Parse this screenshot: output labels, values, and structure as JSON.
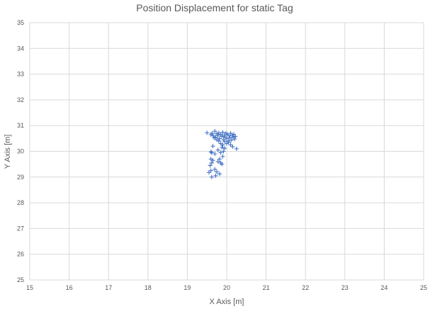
{
  "chart_data": {
    "type": "scatter",
    "title": "Position Displacement for static Tag",
    "xlabel": "X Axis [m]",
    "ylabel": "Y Axis [m]",
    "xlim": [
      15,
      25
    ],
    "ylim": [
      25,
      35
    ],
    "xticks": [
      15,
      16,
      17,
      18,
      19,
      20,
      21,
      22,
      23,
      24,
      25
    ],
    "yticks": [
      25,
      26,
      27,
      28,
      29,
      30,
      31,
      32,
      33,
      34,
      35
    ],
    "grid": true,
    "marker": "plus",
    "series": [
      {
        "color": "#4472c4",
        "points": [
          [
            19.5,
            30.72
          ],
          [
            19.6,
            30.65
          ],
          [
            19.63,
            30.7
          ],
          [
            19.66,
            30.6
          ],
          [
            19.7,
            30.78
          ],
          [
            19.72,
            30.55
          ],
          [
            19.75,
            30.68
          ],
          [
            19.78,
            30.62
          ],
          [
            19.8,
            30.72
          ],
          [
            19.82,
            30.5
          ],
          [
            19.85,
            30.66
          ],
          [
            19.88,
            30.58
          ],
          [
            19.9,
            30.74
          ],
          [
            19.92,
            30.45
          ],
          [
            19.94,
            30.62
          ],
          [
            19.96,
            30.55
          ],
          [
            19.98,
            30.7
          ],
          [
            20.0,
            30.5
          ],
          [
            20.02,
            30.66
          ],
          [
            20.04,
            30.4
          ],
          [
            20.06,
            30.6
          ],
          [
            20.08,
            30.52
          ],
          [
            20.1,
            30.7
          ],
          [
            20.12,
            30.44
          ],
          [
            20.14,
            30.62
          ],
          [
            20.16,
            30.55
          ],
          [
            20.18,
            30.66
          ],
          [
            20.2,
            30.48
          ],
          [
            20.22,
            30.58
          ],
          [
            20.05,
            30.35
          ],
          [
            19.95,
            30.38
          ],
          [
            20.0,
            30.3
          ],
          [
            20.1,
            30.25
          ],
          [
            20.15,
            30.18
          ],
          [
            20.25,
            30.1
          ],
          [
            19.85,
            30.3
          ],
          [
            19.9,
            30.25
          ],
          [
            19.8,
            30.4
          ],
          [
            19.75,
            30.45
          ],
          [
            19.68,
            30.52
          ],
          [
            19.88,
            30.15
          ],
          [
            19.78,
            30.05
          ],
          [
            19.92,
            30.0
          ],
          [
            19.85,
            29.95
          ],
          [
            19.95,
            30.12
          ],
          [
            19.65,
            30.2
          ],
          [
            19.6,
            29.98
          ],
          [
            19.62,
            29.95
          ],
          [
            19.7,
            29.9
          ],
          [
            19.6,
            29.7
          ],
          [
            19.65,
            29.65
          ],
          [
            19.62,
            29.55
          ],
          [
            19.82,
            29.7
          ],
          [
            19.85,
            29.55
          ],
          [
            19.88,
            29.5
          ],
          [
            19.78,
            29.6
          ],
          [
            19.7,
            29.3
          ],
          [
            19.6,
            29.25
          ],
          [
            19.55,
            29.18
          ],
          [
            19.75,
            29.2
          ],
          [
            19.72,
            29.05
          ],
          [
            19.62,
            29.0
          ],
          [
            19.82,
            29.12
          ],
          [
            19.9,
            29.8
          ],
          [
            19.58,
            29.45
          ]
        ]
      }
    ]
  }
}
